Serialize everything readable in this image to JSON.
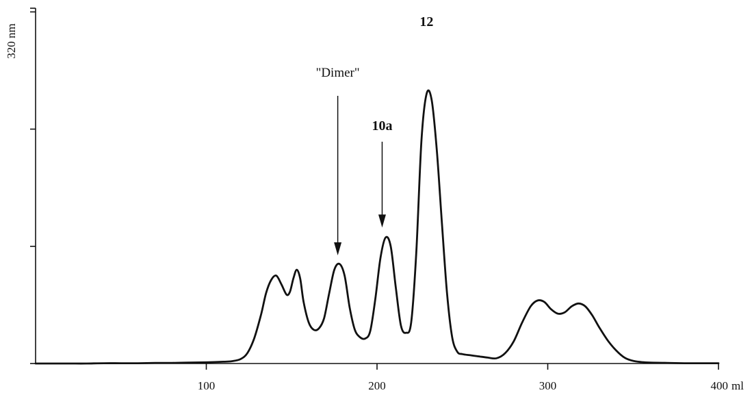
{
  "chart_data": {
    "type": "line",
    "title": "",
    "xlabel": "ml",
    "ylabel": "320 nm",
    "xlim": [
      0,
      400
    ],
    "ylim": [
      0,
      100
    ],
    "x_ticks": [
      {
        "value": 100,
        "label": "100"
      },
      {
        "value": 200,
        "label": "200"
      },
      {
        "value": 300,
        "label": "300"
      },
      {
        "value": 400,
        "label": "400"
      }
    ],
    "y_ticks": [
      0,
      40,
      80,
      120
    ],
    "grid": false,
    "series": [
      {
        "x": [
          0,
          10,
          20,
          30,
          40,
          50,
          60,
          70,
          80,
          90,
          100,
          110,
          115,
          120,
          124,
          128,
          132,
          135,
          138,
          141,
          144,
          147,
          149,
          151,
          153,
          155,
          157,
          160,
          163,
          166,
          169,
          172,
          175,
          178,
          181,
          184,
          187,
          190,
          193,
          196,
          199,
          202,
          205,
          208,
          211,
          214,
          217,
          220,
          223,
          226,
          229,
          232,
          235,
          238,
          241,
          244,
          247,
          250,
          255,
          260,
          265,
          270,
          275,
          280,
          285,
          290,
          294,
          298,
          302,
          306,
          310,
          314,
          318,
          322,
          326,
          330,
          335,
          340,
          345,
          350,
          355,
          360,
          370,
          380,
          390,
          400
        ],
        "y": [
          0.0,
          0.0,
          0.0,
          0.0,
          0.1,
          0.1,
          0.1,
          0.2,
          0.2,
          0.3,
          0.4,
          0.6,
          0.8,
          1.5,
          3.5,
          8.5,
          16.5,
          24.0,
          28.5,
          30.0,
          27.0,
          23.5,
          24.5,
          29.0,
          32.0,
          29.0,
          21.0,
          14.0,
          11.5,
          12.0,
          15.5,
          24.0,
          32.0,
          34.0,
          30.0,
          19.0,
          11.5,
          9.0,
          8.5,
          11.0,
          22.0,
          36.0,
          43.0,
          40.0,
          26.0,
          13.0,
          10.5,
          14.0,
          38.0,
          76.0,
          92.0,
          90.0,
          73.0,
          48.0,
          24.0,
          9.0,
          4.0,
          3.2,
          2.8,
          2.4,
          2.0,
          1.8,
          3.5,
          7.5,
          14.0,
          19.5,
          21.5,
          21.0,
          18.5,
          17.0,
          17.5,
          19.5,
          20.5,
          19.5,
          16.5,
          12.5,
          8.0,
          4.5,
          2.0,
          0.9,
          0.5,
          0.3,
          0.2,
          0.1,
          0.1,
          0.1
        ]
      }
    ],
    "annotations": [
      {
        "text": "12",
        "x": 229,
        "bold": true
      },
      {
        "text": "\"Dimer\"",
        "x": 177,
        "bold": false,
        "arrow_to_y": 35.5
      },
      {
        "text": "10a",
        "x": 203,
        "bold": true,
        "arrow_to_y": 45.0
      }
    ]
  }
}
